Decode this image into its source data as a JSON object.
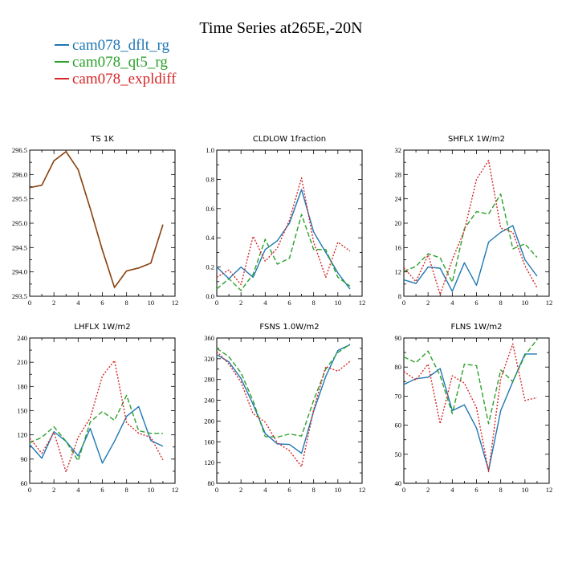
{
  "figure": {
    "title": "Time Series at265E,-20N"
  },
  "legend": [
    {
      "name": "cam078_dflt_rg",
      "color": "#1f77b4",
      "dash": "solid"
    },
    {
      "name": "cam078_qt5_rg",
      "color": "#2ca02c",
      "dash": "longdash"
    },
    {
      "name": "cam078_expldiff",
      "color": "#d62728",
      "dash": "dot"
    }
  ],
  "chart_data": [
    {
      "type": "line",
      "title": "TS   1K",
      "xlim": [
        0,
        12
      ],
      "xticks": [
        0,
        2,
        4,
        6,
        8,
        10,
        12
      ],
      "ylim": [
        293.5,
        296.5
      ],
      "yticks": [
        "293.5",
        "294.0",
        "294.5",
        "295.0",
        "295.5",
        "296.0",
        "296.5"
      ],
      "x": [
        0,
        1,
        2,
        3,
        4,
        5,
        6,
        7,
        8,
        9,
        10,
        11
      ],
      "series": [
        {
          "name": "cam078_dflt_rg",
          "values": [
            295.73,
            295.78,
            296.28,
            296.47,
            296.1,
            295.3,
            294.45,
            293.68,
            294.02,
            294.08,
            294.18,
            294.97
          ]
        },
        {
          "name": "cam078_qt5_rg",
          "values": [
            295.73,
            295.78,
            296.28,
            296.47,
            296.1,
            295.3,
            294.45,
            293.68,
            294.02,
            294.08,
            294.18,
            294.97
          ]
        },
        {
          "name": "cam078_expldiff",
          "values": [
            295.73,
            295.78,
            296.28,
            296.47,
            296.1,
            295.3,
            294.45,
            293.68,
            294.02,
            294.08,
            294.18,
            294.97
          ]
        }
      ]
    },
    {
      "type": "line",
      "title": "CLDLOW   1fraction",
      "xlim": [
        0,
        12
      ],
      "xticks": [
        0,
        2,
        4,
        6,
        8,
        10,
        12
      ],
      "ylim": [
        0.0,
        1.0
      ],
      "yticks": [
        "0.0",
        "0.2",
        "0.4",
        "0.6",
        "0.8",
        "1.0"
      ],
      "x": [
        0,
        1,
        2,
        3,
        4,
        5,
        6,
        7,
        8,
        9,
        10,
        11
      ],
      "series": [
        {
          "name": "cam078_dflt_rg",
          "values": [
            0.2,
            0.12,
            0.2,
            0.13,
            0.32,
            0.38,
            0.5,
            0.73,
            0.44,
            0.3,
            0.16,
            0.05
          ]
        },
        {
          "name": "cam078_qt5_rg",
          "values": [
            0.05,
            0.12,
            0.04,
            0.15,
            0.39,
            0.22,
            0.26,
            0.56,
            0.32,
            0.32,
            0.13,
            0.07
          ]
        },
        {
          "name": "cam078_expldiff",
          "values": [
            0.13,
            0.18,
            0.08,
            0.41,
            0.24,
            0.33,
            0.52,
            0.81,
            0.37,
            0.13,
            0.37,
            0.31
          ]
        }
      ]
    },
    {
      "type": "line",
      "title": "SHFLX   1W/m2",
      "xlim": [
        0,
        12
      ],
      "xticks": [
        0,
        2,
        4,
        6,
        8,
        10,
        12
      ],
      "ylim": [
        8,
        32
      ],
      "yticks": [
        "8",
        "12",
        "16",
        "20",
        "24",
        "28",
        "32"
      ],
      "x": [
        0,
        1,
        2,
        3,
        4,
        5,
        6,
        7,
        8,
        9,
        10,
        11
      ],
      "series": [
        {
          "name": "cam078_dflt_rg",
          "values": [
            10.7,
            10.1,
            12.8,
            12.6,
            8.8,
            13.5,
            9.8,
            16.9,
            18.5,
            19.6,
            14.0,
            11.3
          ]
        },
        {
          "name": "cam078_qt5_rg",
          "values": [
            12.1,
            12.9,
            15.0,
            14.3,
            10.3,
            19.1,
            21.9,
            21.5,
            24.8,
            15.8,
            16.6,
            14.4
          ]
        },
        {
          "name": "cam078_expldiff",
          "values": [
            12.7,
            10.4,
            14.8,
            8.3,
            14.0,
            18.8,
            27.2,
            30.3,
            19.2,
            18.5,
            13.0,
            9.4
          ]
        }
      ]
    },
    {
      "type": "line",
      "title": "LHFLX   1W/m2",
      "xlim": [
        0,
        12
      ],
      "xticks": [
        0,
        2,
        4,
        6,
        8,
        10,
        12
      ],
      "ylim": [
        60,
        240
      ],
      "yticks": [
        "60",
        "90",
        "120",
        "150",
        "180",
        "210",
        "240"
      ],
      "x": [
        0,
        1,
        2,
        3,
        4,
        5,
        6,
        7,
        8,
        9,
        10,
        11
      ],
      "series": [
        {
          "name": "cam078_dflt_rg",
          "values": [
            108,
            91,
            124,
            112,
            94,
            128,
            85,
            112,
            143,
            155,
            113,
            106
          ]
        },
        {
          "name": "cam078_qt5_rg",
          "values": [
            110,
            117,
            130,
            112,
            88,
            136,
            149,
            138,
            169,
            125,
            122,
            122
          ]
        },
        {
          "name": "cam078_expldiff",
          "values": [
            116,
            97,
            123,
            74,
            117,
            141,
            193,
            212,
            135,
            122,
            117,
            89
          ]
        }
      ]
    },
    {
      "type": "line",
      "title": "FSNS   1.0W/m2",
      "xlim": [
        0,
        12
      ],
      "xticks": [
        0,
        2,
        4,
        6,
        8,
        10,
        12
      ],
      "ylim": [
        80,
        360
      ],
      "yticks": [
        "80",
        "120",
        "160",
        "200",
        "240",
        "280",
        "320",
        "360"
      ],
      "x": [
        0,
        1,
        2,
        3,
        4,
        5,
        6,
        7,
        8,
        9,
        10,
        11
      ],
      "series": [
        {
          "name": "cam078_dflt_rg",
          "values": [
            328,
            314,
            282,
            232,
            176,
            156,
            155,
            138,
            219,
            286,
            336,
            347
          ]
        },
        {
          "name": "cam078_qt5_rg",
          "values": [
            340,
            324,
            293,
            239,
            170,
            169,
            175,
            171,
            240,
            300,
            332,
            348
          ]
        },
        {
          "name": "cam078_expldiff",
          "values": [
            334,
            310,
            275,
            214,
            198,
            158,
            143,
            112,
            222,
            305,
            296,
            315
          ]
        }
      ]
    },
    {
      "type": "line",
      "title": "FLNS   1W/m2",
      "xlim": [
        0,
        12
      ],
      "xticks": [
        0,
        2,
        4,
        6,
        8,
        10,
        12
      ],
      "ylim": [
        40,
        90
      ],
      "yticks": [
        "40",
        "50",
        "60",
        "70",
        "80",
        "90"
      ],
      "x": [
        0,
        1,
        2,
        3,
        4,
        5,
        6,
        7,
        8,
        9,
        10,
        11
      ],
      "series": [
        {
          "name": "cam078_dflt_rg",
          "values": [
            74.0,
            76.0,
            76.5,
            79.5,
            65.0,
            67.0,
            59.0,
            44.5,
            65.0,
            75.0,
            84.5,
            84.5
          ]
        },
        {
          "name": "cam078_qt5_rg",
          "values": [
            83.5,
            81.5,
            85.5,
            77.0,
            64.0,
            81.0,
            80.5,
            60.5,
            79.0,
            75.0,
            84.0,
            89.5
          ]
        },
        {
          "name": "cam078_expldiff",
          "values": [
            78.5,
            75.5,
            81.0,
            60.5,
            77.0,
            74.5,
            66.0,
            44.0,
            76.0,
            88.0,
            68.5,
            69.5
          ]
        }
      ]
    }
  ]
}
